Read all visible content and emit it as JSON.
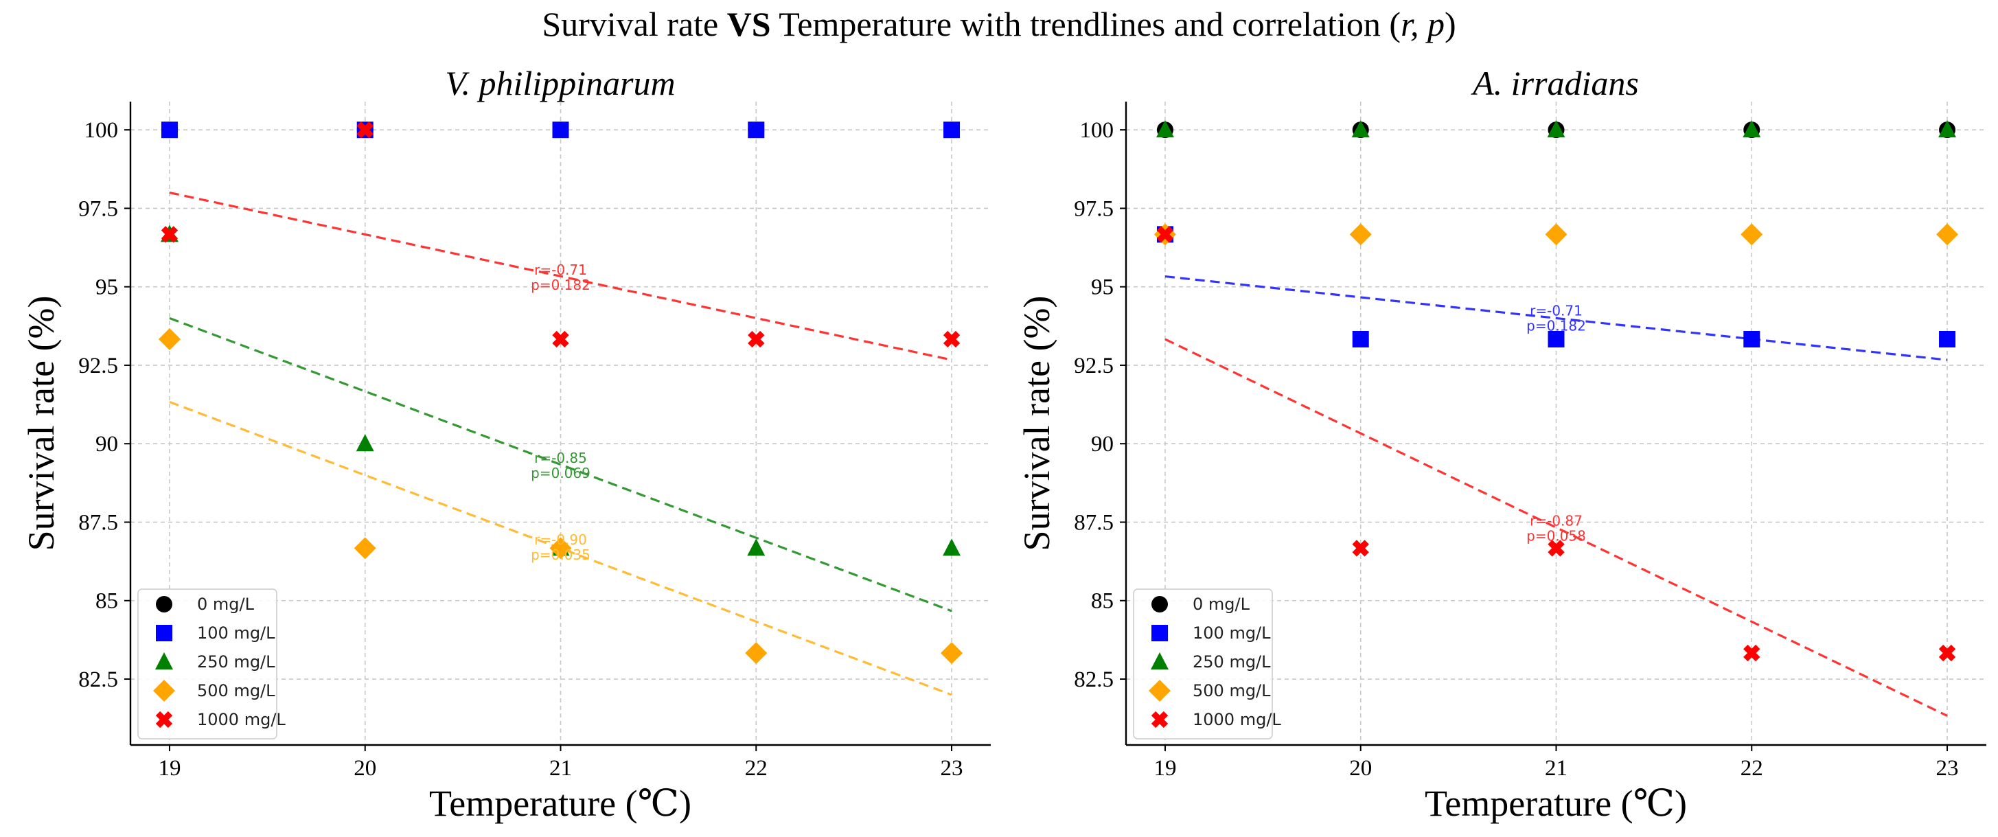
{
  "chart_data": {
    "type": "scatter",
    "title": "Survival rate VS Temperature with trendlines and correlation (r, p)",
    "title_parts": [
      {
        "text": "Survival rate ",
        "weight": "normal",
        "style": "normal"
      },
      {
        "text": "VS",
        "weight": "bold",
        "style": "normal"
      },
      {
        "text": " Temperature with trendlines and correlation (",
        "weight": "normal",
        "style": "normal"
      },
      {
        "text": "r, p",
        "weight": "normal",
        "style": "italic"
      },
      {
        "text": ")",
        "weight": "normal",
        "style": "normal"
      }
    ],
    "xlabel": "Temperature (℃)",
    "ylabel": "Survival rate (%)",
    "x_ticks": [
      19,
      20,
      21,
      22,
      23
    ],
    "x_tick_labels": [
      "19",
      "20",
      "21",
      "22",
      "23"
    ],
    "y_ticks": [
      82.5,
      85,
      87.5,
      90,
      92.5,
      95,
      97.5,
      100
    ],
    "y_tick_labels": [
      "82.5",
      "85",
      "87.5",
      "90",
      "92.5",
      "95",
      "97.5",
      "100"
    ],
    "xlim": [
      18.8,
      23.2
    ],
    "ylim": [
      80.4,
      100.9
    ],
    "grid": true,
    "legend_position": "lower-left",
    "series_styles": [
      {
        "name": "0 mg/L",
        "color": "#000000",
        "marker": "circle"
      },
      {
        "name": "100 mg/L",
        "color": "#0000ff",
        "marker": "square"
      },
      {
        "name": "250 mg/L",
        "color": "#008000",
        "marker": "triangle"
      },
      {
        "name": "500 mg/L",
        "color": "#ffa500",
        "marker": "diamond"
      },
      {
        "name": "1000 mg/L",
        "color": "#ff0000",
        "marker": "x"
      }
    ],
    "panels": [
      {
        "title": "V. philippinarum",
        "x": [
          19,
          20,
          21,
          22,
          23
        ],
        "series": [
          {
            "name": "0 mg/L",
            "values": [
              100,
              100,
              100,
              100,
              100
            ]
          },
          {
            "name": "100 mg/L",
            "values": [
              100,
              100,
              100,
              100,
              100
            ]
          },
          {
            "name": "250 mg/L",
            "values": [
              96.67,
              90,
              86.67,
              86.67,
              86.67
            ]
          },
          {
            "name": "500 mg/L",
            "values": [
              93.33,
              86.67,
              86.67,
              83.33,
              83.33
            ]
          },
          {
            "name": "1000 mg/L",
            "values": [
              96.67,
              100,
              93.33,
              93.33,
              93.33
            ]
          }
        ],
        "trendlines": [
          {
            "series": "1000 mg/L",
            "color": "#ff3333",
            "y_start": 98.0,
            "y_end": 92.67,
            "r_text": "r=-0.71",
            "p_text": "p=0.182",
            "label_x": 21,
            "label_y": 95.3
          },
          {
            "series": "250 mg/L",
            "color": "#339933",
            "y_start": 94.0,
            "y_end": 84.67,
            "r_text": "r=-0.85",
            "p_text": "p=0.069",
            "label_x": 21,
            "label_y": 89.3
          },
          {
            "series": "500 mg/L",
            "color": "#ffbb33",
            "y_start": 91.33,
            "y_end": 82.0,
            "r_text": "r=-0.90",
            "p_text": "p=0.035",
            "label_x": 21,
            "label_y": 86.7
          }
        ]
      },
      {
        "title": "A. irradians",
        "x": [
          19,
          20,
          21,
          22,
          23
        ],
        "series": [
          {
            "name": "0 mg/L",
            "values": [
              100,
              100,
              100,
              100,
              100
            ]
          },
          {
            "name": "100 mg/L",
            "values": [
              96.67,
              93.33,
              93.33,
              93.33,
              93.33
            ]
          },
          {
            "name": "250 mg/L",
            "values": [
              100,
              100,
              100,
              100,
              100
            ]
          },
          {
            "name": "500 mg/L",
            "values": [
              96.67,
              96.67,
              96.67,
              96.67,
              96.67
            ]
          },
          {
            "name": "1000 mg/L",
            "values": [
              96.67,
              86.67,
              86.67,
              83.33,
              83.33
            ]
          }
        ],
        "trendlines": [
          {
            "series": "100 mg/L",
            "color": "#3333ff",
            "y_start": 95.33,
            "y_end": 92.67,
            "r_text": "r=-0.71",
            "p_text": "p=0.182",
            "label_x": 21,
            "label_y": 94.0
          },
          {
            "series": "1000 mg/L",
            "color": "#ff3333",
            "y_start": 93.33,
            "y_end": 81.33,
            "r_text": "r=-0.87",
            "p_text": "p=0.058",
            "label_x": 21,
            "label_y": 87.3
          }
        ]
      }
    ]
  }
}
